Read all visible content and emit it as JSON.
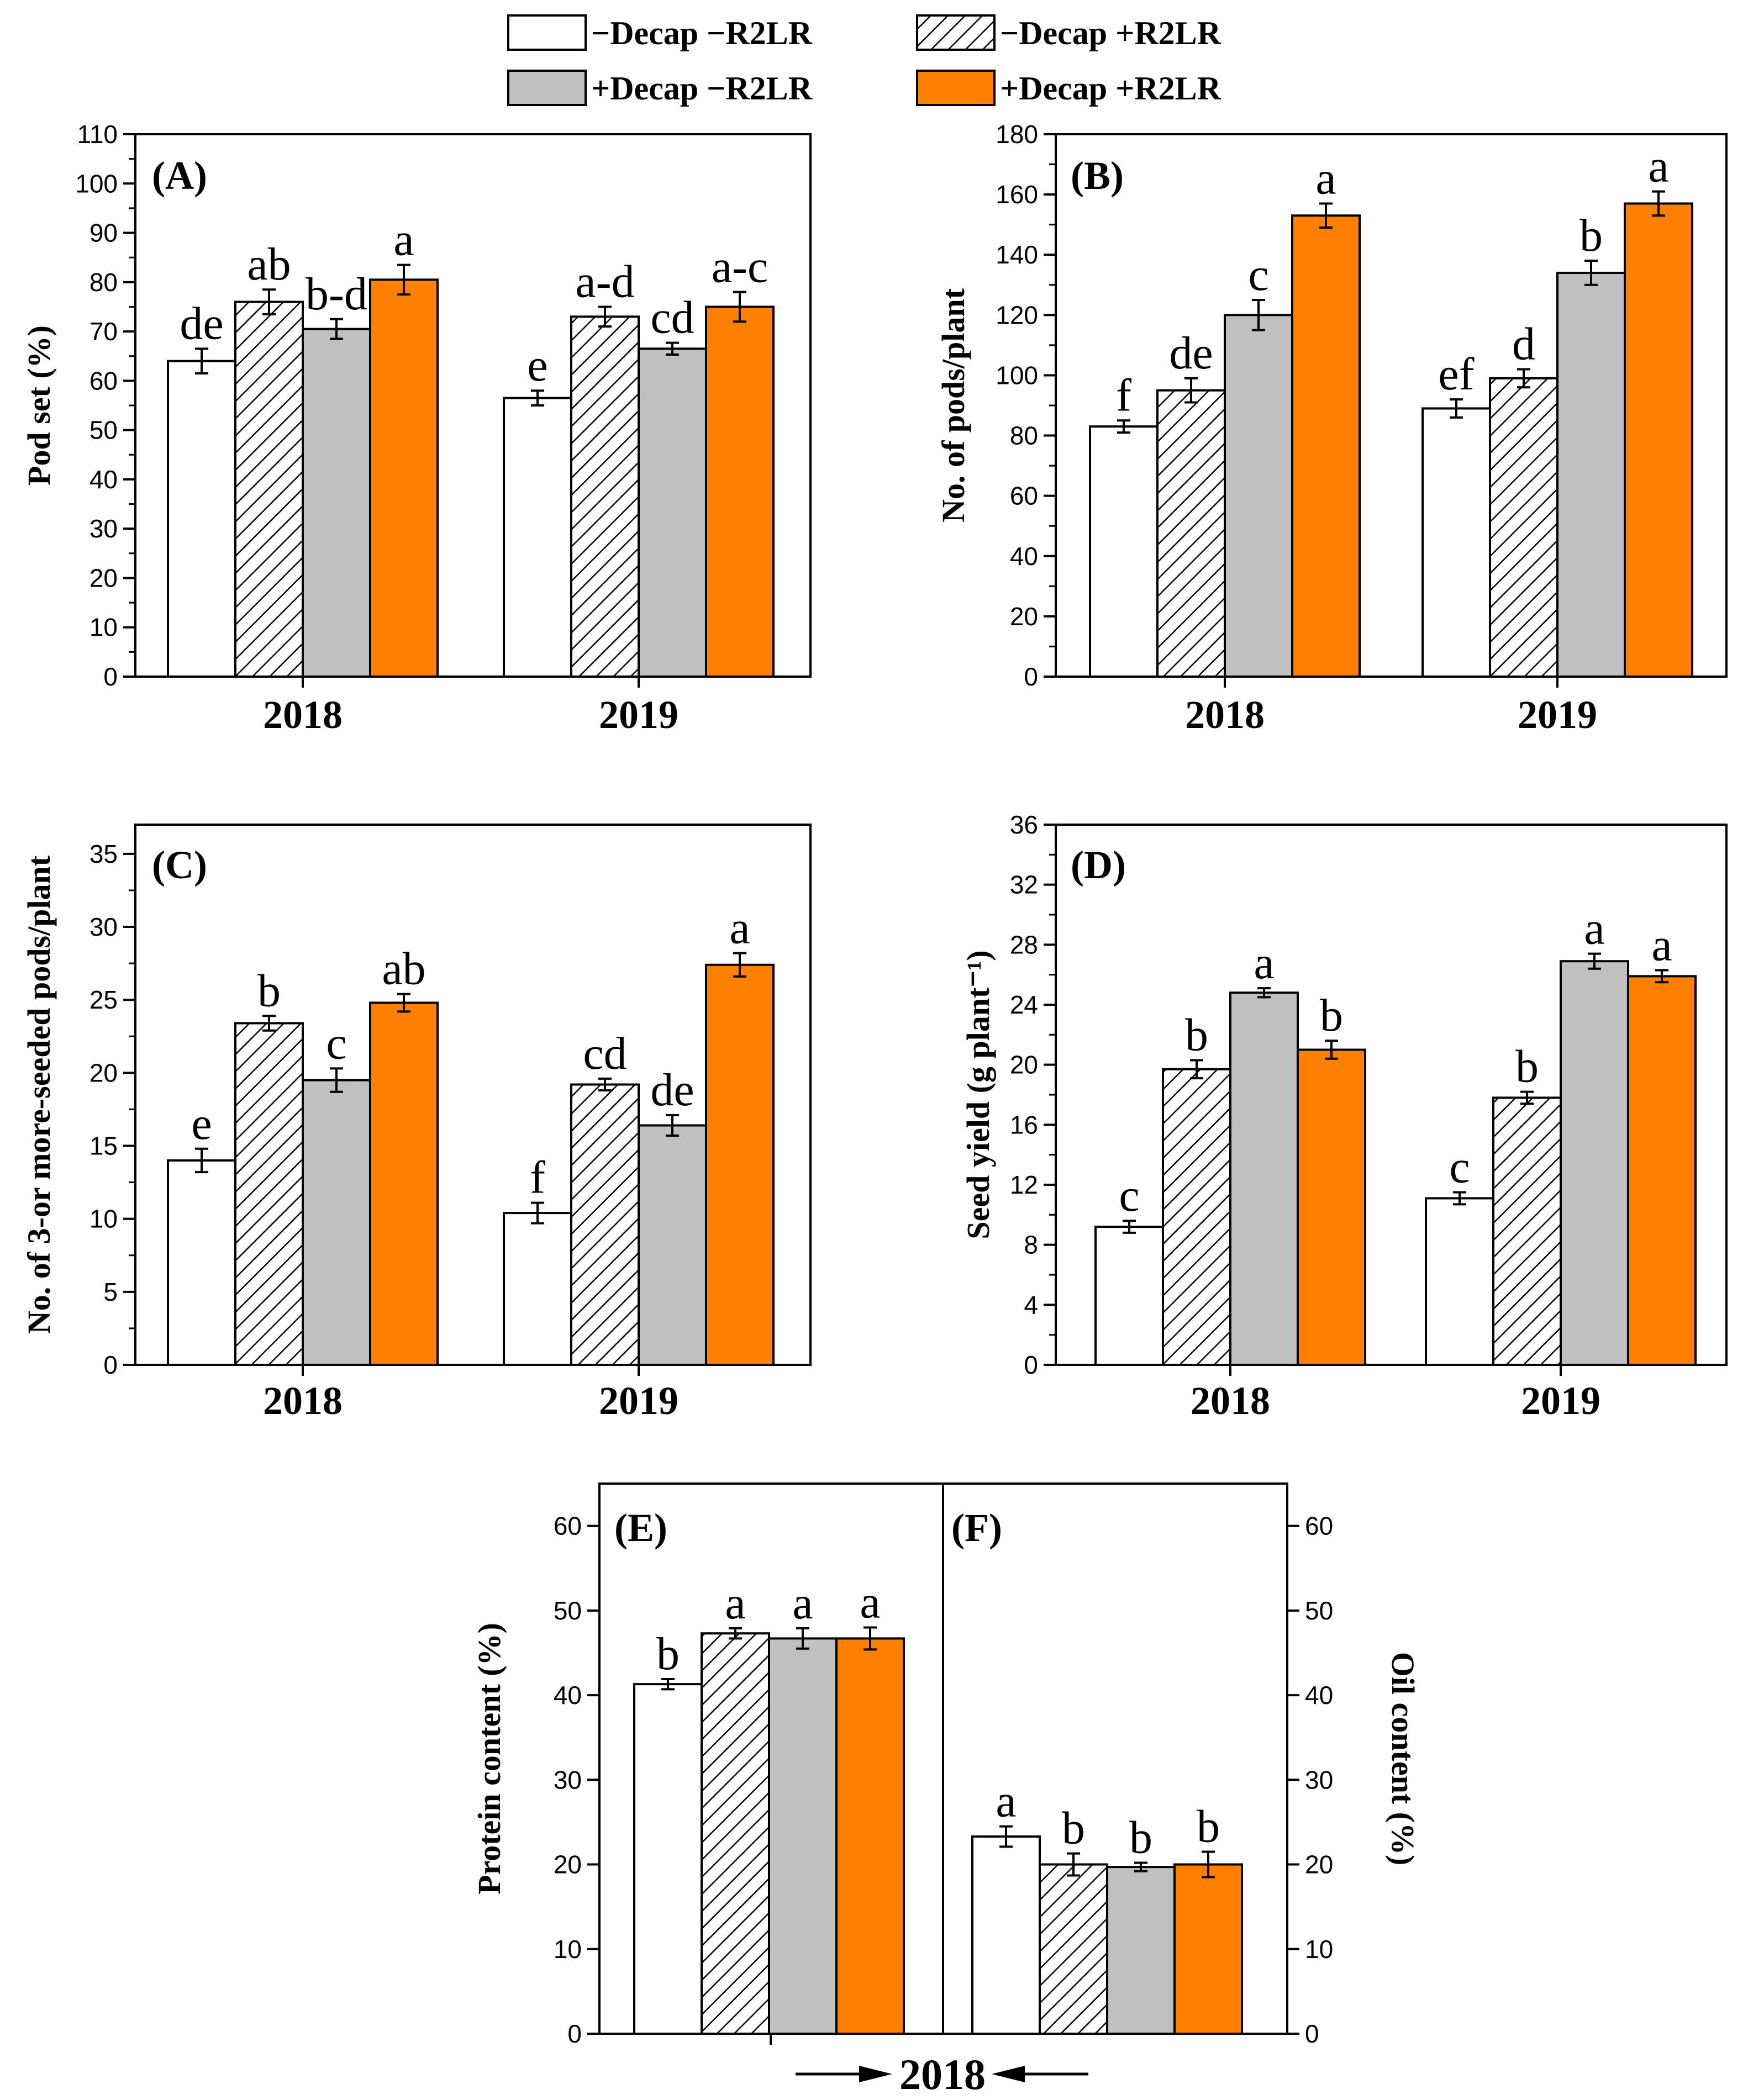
{
  "colors": {
    "white": "#ffffff",
    "hatch": "#ffffff",
    "gray": "#c0c0c0",
    "orange": "#ff7f00",
    "line": "#000000"
  },
  "legend": [
    {
      "label": "−Decap  −R2LR",
      "style": "white"
    },
    {
      "label": "−Decap  +R2LR",
      "style": "hatch"
    },
    {
      "label": "+Decap  −R2LR",
      "style": "gray"
    },
    {
      "label": "+Decap +R2LR",
      "style": "orange"
    }
  ],
  "bottom_label": {
    "year": "2018"
  },
  "chart_data": [
    {
      "id": "A",
      "type": "bar",
      "label": "(A)",
      "ylabel": "Pod set (%)",
      "ylim": [
        0,
        110
      ],
      "yticks": [
        0,
        10,
        20,
        30,
        40,
        50,
        60,
        70,
        80,
        90,
        100,
        110
      ],
      "categories": [
        "2018",
        "2019"
      ],
      "series": [
        {
          "name": "−Decap −R2LR",
          "values": [
            64,
            56.5
          ],
          "errors": [
            2.5,
            1.5
          ],
          "letters": [
            "de",
            "e"
          ]
        },
        {
          "name": "−Decap +R2LR",
          "values": [
            76,
            73
          ],
          "errors": [
            2.5,
            2
          ],
          "letters": [
            "ab",
            "a-d"
          ]
        },
        {
          "name": "+Decap −R2LR",
          "values": [
            70.5,
            66.5
          ],
          "errors": [
            2,
            1.2
          ],
          "letters": [
            "b-d",
            "cd"
          ]
        },
        {
          "name": "+Decap +R2LR",
          "values": [
            80.5,
            75
          ],
          "errors": [
            3,
            3
          ],
          "letters": [
            "a",
            "a-c"
          ]
        }
      ]
    },
    {
      "id": "B",
      "type": "bar",
      "label": "(B)",
      "ylabel": "No. of pods/plant",
      "ylim": [
        0,
        180
      ],
      "yticks": [
        0,
        20,
        40,
        60,
        80,
        100,
        120,
        140,
        160,
        180
      ],
      "categories": [
        "2018",
        "2019"
      ],
      "series": [
        {
          "name": "−Decap −R2LR",
          "values": [
            83,
            89
          ],
          "errors": [
            2,
            3
          ],
          "letters": [
            "f",
            "ef"
          ]
        },
        {
          "name": "−Decap +R2LR",
          "values": [
            95,
            99
          ],
          "errors": [
            4,
            3
          ],
          "letters": [
            "de",
            "d"
          ]
        },
        {
          "name": "+Decap −R2LR",
          "values": [
            120,
            134
          ],
          "errors": [
            5,
            4
          ],
          "letters": [
            "c",
            "b"
          ]
        },
        {
          "name": "+Decap +R2LR",
          "values": [
            153,
            157
          ],
          "errors": [
            4,
            4
          ],
          "letters": [
            "a",
            "a"
          ]
        }
      ]
    },
    {
      "id": "C",
      "type": "bar",
      "label": "(C)",
      "ylabel": "No. of 3-or more-seeded pods/plant",
      "ylim": [
        0,
        37
      ],
      "yticks": [
        0,
        5,
        10,
        15,
        20,
        25,
        30,
        35
      ],
      "categories": [
        "2018",
        "2019"
      ],
      "series": [
        {
          "name": "−Decap −R2LR",
          "values": [
            14,
            10.4
          ],
          "errors": [
            0.8,
            0.7
          ],
          "letters": [
            "e",
            "f"
          ]
        },
        {
          "name": "−Decap +R2LR",
          "values": [
            23.4,
            19.2
          ],
          "errors": [
            0.5,
            0.4
          ],
          "letters": [
            "b",
            "cd"
          ]
        },
        {
          "name": "+Decap −R2LR",
          "values": [
            19.5,
            16.4
          ],
          "errors": [
            0.8,
            0.7
          ],
          "letters": [
            "c",
            "de"
          ]
        },
        {
          "name": "+Decap +R2LR",
          "values": [
            24.8,
            27.4
          ],
          "errors": [
            0.6,
            0.8
          ],
          "letters": [
            "ab",
            "a"
          ]
        }
      ]
    },
    {
      "id": "D",
      "type": "bar",
      "label": "(D)",
      "ylabel": "Seed yield (g plant⁻¹)",
      "ylim": [
        0,
        36
      ],
      "yticks": [
        0,
        4,
        8,
        12,
        16,
        20,
        24,
        28,
        32,
        36
      ],
      "categories": [
        "2018",
        "2019"
      ],
      "series": [
        {
          "name": "−Decap −R2LR",
          "values": [
            9.2,
            11.1
          ],
          "errors": [
            0.4,
            0.4
          ],
          "letters": [
            "c",
            "c"
          ]
        },
        {
          "name": "−Decap +R2LR",
          "values": [
            19.7,
            17.8
          ],
          "errors": [
            0.6,
            0.4
          ],
          "letters": [
            "b",
            "b"
          ]
        },
        {
          "name": "+Decap −R2LR",
          "values": [
            24.8,
            26.9
          ],
          "errors": [
            0.3,
            0.5
          ],
          "letters": [
            "a",
            "a"
          ]
        },
        {
          "name": "+Decap +R2LR",
          "values": [
            21,
            25.9
          ],
          "errors": [
            0.6,
            0.4
          ],
          "letters": [
            "b",
            "a"
          ]
        }
      ]
    },
    {
      "id": "E",
      "type": "bar",
      "label": "(E)",
      "ylabel": "Protein content (%)",
      "ylim": [
        0,
        65
      ],
      "yticks": [
        0,
        10,
        20,
        30,
        40,
        50,
        60
      ],
      "categories": [
        "2018"
      ],
      "series": [
        {
          "name": "−Decap −R2LR",
          "values": [
            41.3
          ],
          "errors": [
            0.6
          ],
          "letters": [
            "b"
          ]
        },
        {
          "name": "−Decap +R2LR",
          "values": [
            47.3
          ],
          "errors": [
            0.6
          ],
          "letters": [
            "a"
          ]
        },
        {
          "name": "+Decap −R2LR",
          "values": [
            46.7
          ],
          "errors": [
            1.2
          ],
          "letters": [
            "a"
          ]
        },
        {
          "name": "+Decap +R2LR",
          "values": [
            46.7
          ],
          "errors": [
            1.3
          ],
          "letters": [
            "a"
          ]
        }
      ]
    },
    {
      "id": "F",
      "type": "bar",
      "label": "(F)",
      "ylabel": "Oil content (%)",
      "ylim": [
        0,
        65
      ],
      "yticks": [
        0,
        10,
        20,
        30,
        40,
        50,
        60
      ],
      "categories": [
        "2018"
      ],
      "series": [
        {
          "name": "−Decap −R2LR",
          "values": [
            23.3
          ],
          "errors": [
            1.2
          ],
          "letters": [
            "a"
          ]
        },
        {
          "name": "−Decap +R2LR",
          "values": [
            20
          ],
          "errors": [
            1.3
          ],
          "letters": [
            "b"
          ]
        },
        {
          "name": "+Decap −R2LR",
          "values": [
            19.7
          ],
          "errors": [
            0.5
          ],
          "letters": [
            "b"
          ]
        },
        {
          "name": "+Decap +R2LR",
          "values": [
            20
          ],
          "errors": [
            1.5
          ],
          "letters": [
            "b"
          ]
        }
      ]
    }
  ]
}
